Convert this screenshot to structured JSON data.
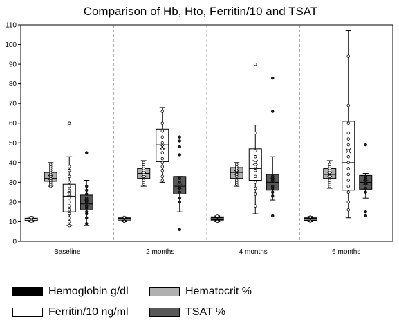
{
  "chart_data": {
    "type": "boxplot",
    "title": "Comparison of Hb, Hto, Ferritin/10 and TSAT",
    "xlabel": "",
    "ylabel": "",
    "ylim": [
      0,
      110
    ],
    "yticks": [
      0,
      10,
      20,
      30,
      40,
      50,
      60,
      70,
      80,
      90,
      100,
      110
    ],
    "grid": "vertical-dashed",
    "legend_position": "bottom",
    "categories": [
      "Baseline",
      "2 months",
      "4 months",
      "6 months"
    ],
    "series": [
      {
        "name": "Hemoglobin g/dl",
        "color": "#000000",
        "boxes": [
          {
            "min": 10,
            "q1": 10.5,
            "median": 11,
            "q3": 11.8,
            "max": 12.5,
            "mean": 11,
            "points": [
              10.3,
              11.5,
              12.2
            ]
          },
          {
            "min": 10,
            "q1": 10.8,
            "median": 11.2,
            "q3": 12,
            "max": 12.5,
            "mean": 11.3,
            "points": [
              10.2,
              12.3
            ]
          },
          {
            "min": 10,
            "q1": 10.8,
            "median": 11.5,
            "q3": 12.5,
            "max": 13,
            "mean": 11.6,
            "points": [
              10.2,
              12.8
            ]
          },
          {
            "min": 10,
            "q1": 10.6,
            "median": 11.2,
            "q3": 12,
            "max": 12.7,
            "mean": 11.2,
            "points": [
              10.3,
              12.4
            ]
          }
        ]
      },
      {
        "name": "Hematocrit %",
        "color": "#b0b0b0",
        "boxes": [
          {
            "min": 28,
            "q1": 30.5,
            "median": 32,
            "q3": 35,
            "max": 40,
            "mean": 32.5,
            "points": [
              28,
              29,
              30,
              31,
              32,
              33,
              34,
              35,
              36,
              37,
              38,
              39
            ]
          },
          {
            "min": 28,
            "q1": 32,
            "median": 34.5,
            "q3": 37,
            "max": 41,
            "mean": 34,
            "points": [
              29,
              30,
              31,
              33,
              34,
              35,
              36,
              37,
              38,
              39,
              40
            ]
          },
          {
            "min": 28,
            "q1": 32,
            "median": 35,
            "q3": 37.5,
            "max": 40,
            "mean": 35,
            "points": [
              29,
              30,
              31,
              33,
              34,
              36,
              37,
              38,
              39
            ]
          },
          {
            "min": 27,
            "q1": 32,
            "median": 34,
            "q3": 37,
            "max": 41,
            "mean": 34,
            "points": [
              28,
              29,
              30,
              31,
              33,
              35,
              36,
              37,
              38,
              39
            ]
          }
        ]
      },
      {
        "name": "Ferritin/10 ng/ml",
        "color": "#ffffff",
        "boxes": [
          {
            "min": 8,
            "q1": 15,
            "median": 23,
            "q3": 29,
            "max": 43,
            "mean": 24,
            "points": [
              8,
              10,
              12,
              14,
              16,
              18,
              20,
              22,
              24,
              26,
              28,
              30,
              33,
              36,
              38,
              60
            ]
          },
          {
            "min": 30,
            "q1": 40.5,
            "median": 49,
            "q3": 57,
            "max": 68,
            "mean": 48,
            "points": [
              31,
              33,
              36,
              38,
              40,
              42,
              45,
              47,
              50,
              53,
              56,
              60,
              66
            ]
          },
          {
            "min": 14,
            "q1": 31,
            "median": 37,
            "q3": 47,
            "max": 59,
            "mean": 40,
            "points": [
              18,
              24,
              27,
              30,
              33,
              36,
              38,
              40,
              43,
              46,
              55,
              90
            ]
          },
          {
            "min": 12,
            "q1": 26,
            "median": 40,
            "q3": 61,
            "max": 107,
            "mean": 46,
            "points": [
              16,
              20,
              25,
              28,
              31,
              34,
              37,
              40,
              43,
              46,
              49,
              52,
              55,
              60,
              69,
              94
            ]
          }
        ]
      },
      {
        "name": "TSAT %",
        "color": "#585858",
        "boxes": [
          {
            "min": 8,
            "q1": 16,
            "median": 19,
            "q3": 23.5,
            "max": 31,
            "mean": 20,
            "points": [
              9,
              12,
              14,
              15,
              17,
              18,
              20,
              21,
              22,
              24,
              26,
              28,
              45
            ]
          },
          {
            "min": 15,
            "q1": 24,
            "median": 28,
            "q3": 33,
            "max": 33,
            "mean": 28,
            "points": [
              6,
              20,
              22,
              25,
              27,
              30,
              32,
              44,
              48,
              51,
              53
            ]
          },
          {
            "min": 21,
            "q1": 26,
            "median": 30,
            "q3": 34,
            "max": 43,
            "mean": 31,
            "points": [
              13,
              23,
              25,
              27,
              28,
              31,
              32,
              33,
              66,
              83
            ]
          },
          {
            "min": 22,
            "q1": 26.5,
            "median": 30,
            "q3": 33.5,
            "max": 34.5,
            "mean": 30,
            "points": [
              13,
              15,
              25,
              27,
              29,
              31,
              32,
              33,
              49
            ]
          }
        ]
      }
    ]
  }
}
